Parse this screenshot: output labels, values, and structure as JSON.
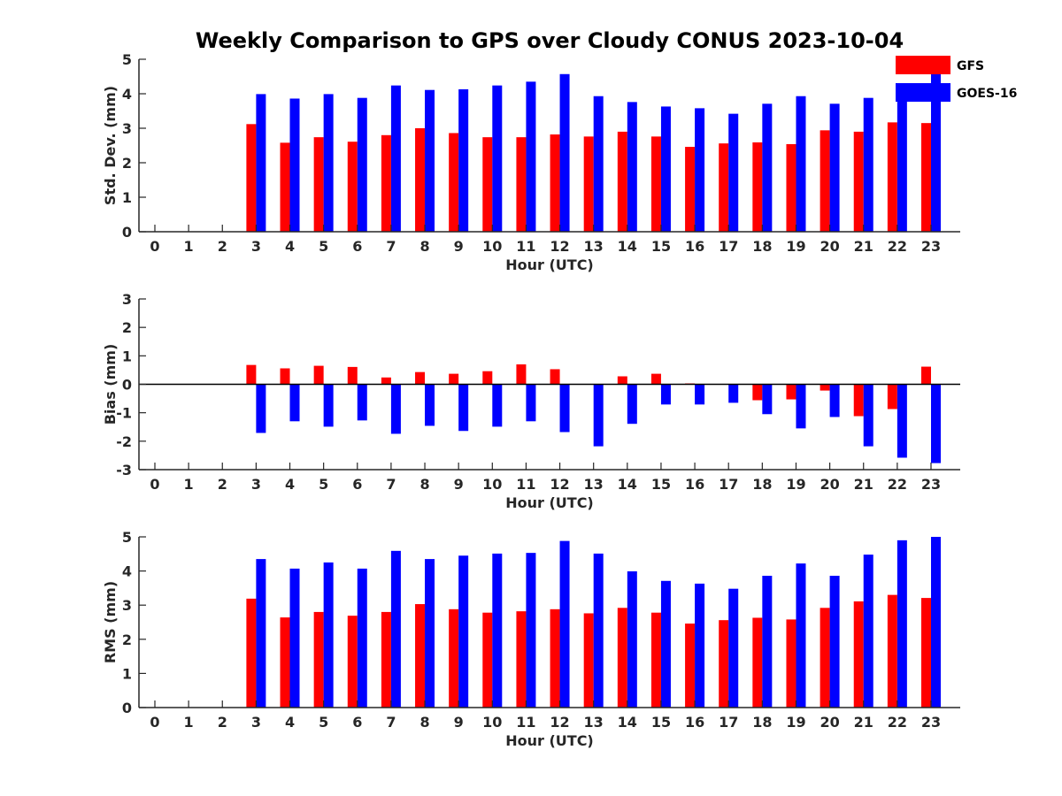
{
  "title": "Weekly Comparison to GPS over Cloudy CONUS 2023-10-04",
  "legend": [
    {
      "name": "GFS",
      "color": "#ff0000"
    },
    {
      "name": "GOES-16",
      "color": "#0000ff"
    }
  ],
  "chart_data": [
    {
      "type": "bar",
      "ylabel": "Std. Dev. (mm)",
      "xlabel": "Hour (UTC)",
      "ylim": [
        0,
        5
      ],
      "yticks": [
        0,
        1,
        2,
        3,
        4,
        5
      ],
      "categories": [
        "0",
        "1",
        "2",
        "3",
        "4",
        "5",
        "6",
        "7",
        "8",
        "9",
        "10",
        "11",
        "12",
        "13",
        "14",
        "15",
        "16",
        "17",
        "18",
        "19",
        "20",
        "21",
        "22",
        "23"
      ],
      "series": [
        {
          "name": "GFS",
          "color": "#ff0000",
          "values": [
            null,
            null,
            null,
            3.12,
            2.58,
            2.74,
            2.61,
            2.8,
            3.0,
            2.86,
            2.74,
            2.74,
            2.82,
            2.76,
            2.9,
            2.76,
            2.46,
            2.56,
            2.59,
            2.54,
            2.94,
            2.9,
            3.17,
            3.15
          ]
        },
        {
          "name": "GOES-16",
          "color": "#0000ff",
          "values": [
            null,
            null,
            null,
            3.99,
            3.86,
            3.99,
            3.88,
            4.24,
            4.11,
            4.13,
            4.24,
            4.35,
            4.57,
            3.93,
            3.76,
            3.63,
            3.58,
            3.42,
            3.71,
            3.93,
            3.71,
            3.88,
            4.17,
            4.57
          ]
        }
      ]
    },
    {
      "type": "bar",
      "ylabel": "Bias (mm)",
      "xlabel": "Hour (UTC)",
      "ylim": [
        -3,
        3
      ],
      "yticks": [
        -3,
        -2,
        -1,
        0,
        1,
        2,
        3
      ],
      "categories": [
        "0",
        "1",
        "2",
        "3",
        "4",
        "5",
        "6",
        "7",
        "8",
        "9",
        "10",
        "11",
        "12",
        "13",
        "14",
        "15",
        "16",
        "17",
        "18",
        "19",
        "20",
        "21",
        "22",
        "23"
      ],
      "series": [
        {
          "name": "GFS",
          "color": "#ff0000",
          "values": [
            null,
            null,
            null,
            0.68,
            0.56,
            0.65,
            0.61,
            0.24,
            0.43,
            0.37,
            0.46,
            0.7,
            0.53,
            0.0,
            0.28,
            0.37,
            0.03,
            0.0,
            -0.56,
            -0.53,
            -0.22,
            -1.12,
            -0.87,
            0.62
          ]
        },
        {
          "name": "GOES-16",
          "color": "#0000ff",
          "values": [
            null,
            null,
            null,
            -1.71,
            -1.3,
            -1.49,
            -1.27,
            -1.74,
            -1.46,
            -1.64,
            -1.49,
            -1.3,
            -1.68,
            -2.18,
            -1.39,
            -0.71,
            -0.71,
            -0.65,
            -1.05,
            -1.55,
            -1.15,
            -2.18,
            -2.58,
            -2.77
          ]
        }
      ]
    },
    {
      "type": "bar",
      "ylabel": "RMS (mm)",
      "xlabel": "Hour (UTC)",
      "ylim": [
        0,
        5
      ],
      "yticks": [
        0,
        1,
        2,
        3,
        4,
        5
      ],
      "categories": [
        "0",
        "1",
        "2",
        "3",
        "4",
        "5",
        "6",
        "7",
        "8",
        "9",
        "10",
        "11",
        "12",
        "13",
        "14",
        "15",
        "16",
        "17",
        "18",
        "19",
        "20",
        "21",
        "22",
        "23"
      ],
      "series": [
        {
          "name": "GFS",
          "color": "#ff0000",
          "values": [
            null,
            null,
            null,
            3.19,
            2.64,
            2.8,
            2.69,
            2.8,
            3.03,
            2.88,
            2.78,
            2.82,
            2.88,
            2.76,
            2.92,
            2.78,
            2.46,
            2.56,
            2.63,
            2.58,
            2.92,
            3.11,
            3.3,
            3.21
          ]
        },
        {
          "name": "GOES-16",
          "color": "#0000ff",
          "values": [
            null,
            null,
            null,
            4.35,
            4.07,
            4.25,
            4.07,
            4.59,
            4.35,
            4.45,
            4.51,
            4.53,
            4.88,
            4.51,
            3.99,
            3.71,
            3.63,
            3.48,
            3.86,
            4.22,
            3.86,
            4.48,
            4.9,
            5.0
          ]
        }
      ]
    }
  ]
}
